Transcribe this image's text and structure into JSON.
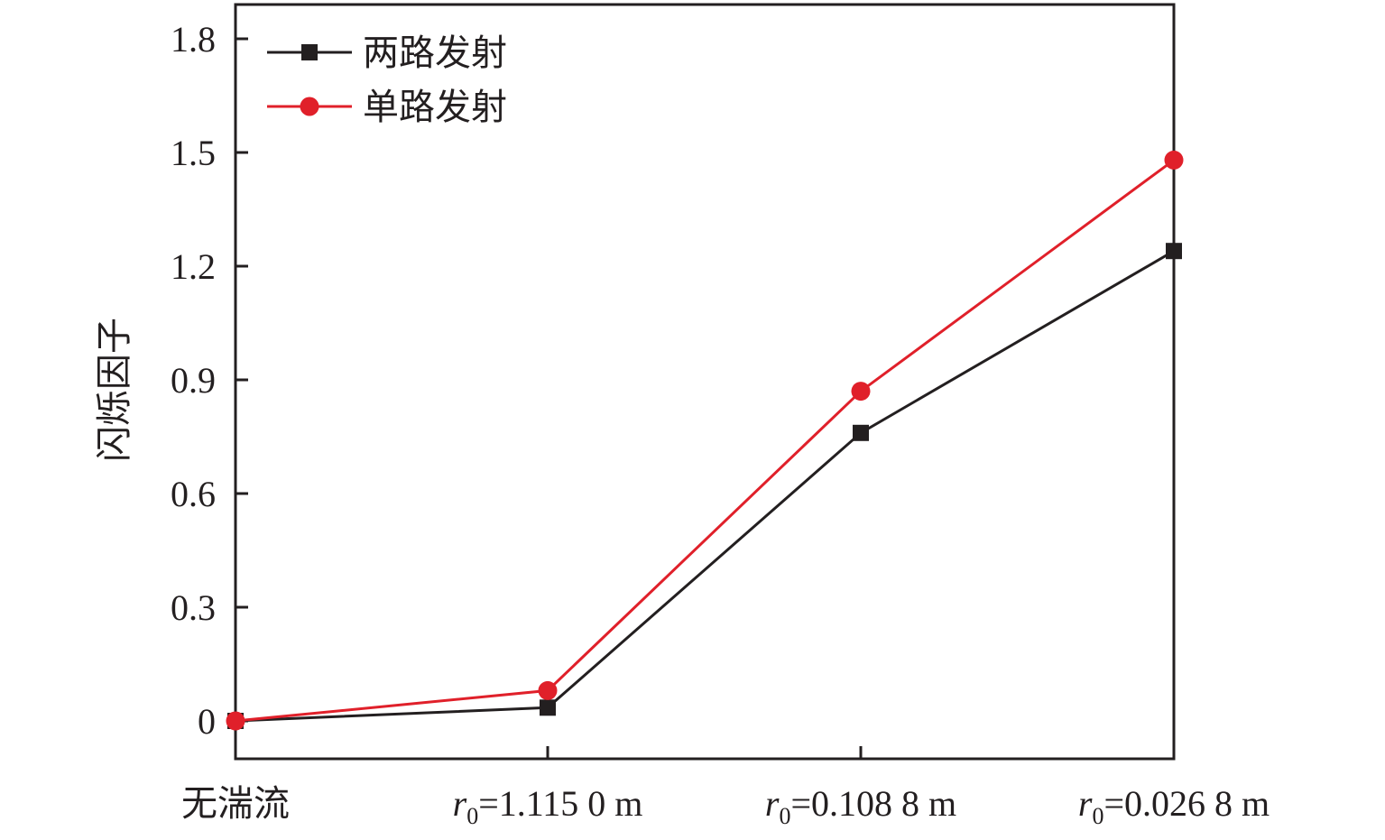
{
  "chart_data": {
    "type": "line",
    "ylabel": "闪烁因子",
    "ylim": [
      -0.1,
      1.9
    ],
    "yticks": [
      "0",
      "0.3",
      "0.6",
      "0.9",
      "1.2",
      "1.5",
      "1.8"
    ],
    "ytick_values": [
      0,
      0.3,
      0.6,
      0.9,
      1.2,
      1.5,
      1.8
    ],
    "categories": [
      {
        "main": "无湍流",
        "italic": "",
        "sub": "",
        "rest": ""
      },
      {
        "main": "",
        "italic": "r",
        "sub": "0",
        "rest": "=1.115 0 m"
      },
      {
        "main": "",
        "italic": "r",
        "sub": "0",
        "rest": "=0.108 8 m"
      },
      {
        "main": "",
        "italic": "r",
        "sub": "0",
        "rest": "=0.026 8 m"
      }
    ],
    "series": [
      {
        "name": "两路发射",
        "color": "#231f20",
        "marker": "square",
        "values": [
          0,
          0.035,
          0.76,
          1.24
        ]
      },
      {
        "name": "单路发射",
        "color": "#e0202a",
        "marker": "circle",
        "values": [
          0,
          0.08,
          0.87,
          1.48
        ]
      }
    ],
    "legend_position": "top-left",
    "grid": false
  }
}
